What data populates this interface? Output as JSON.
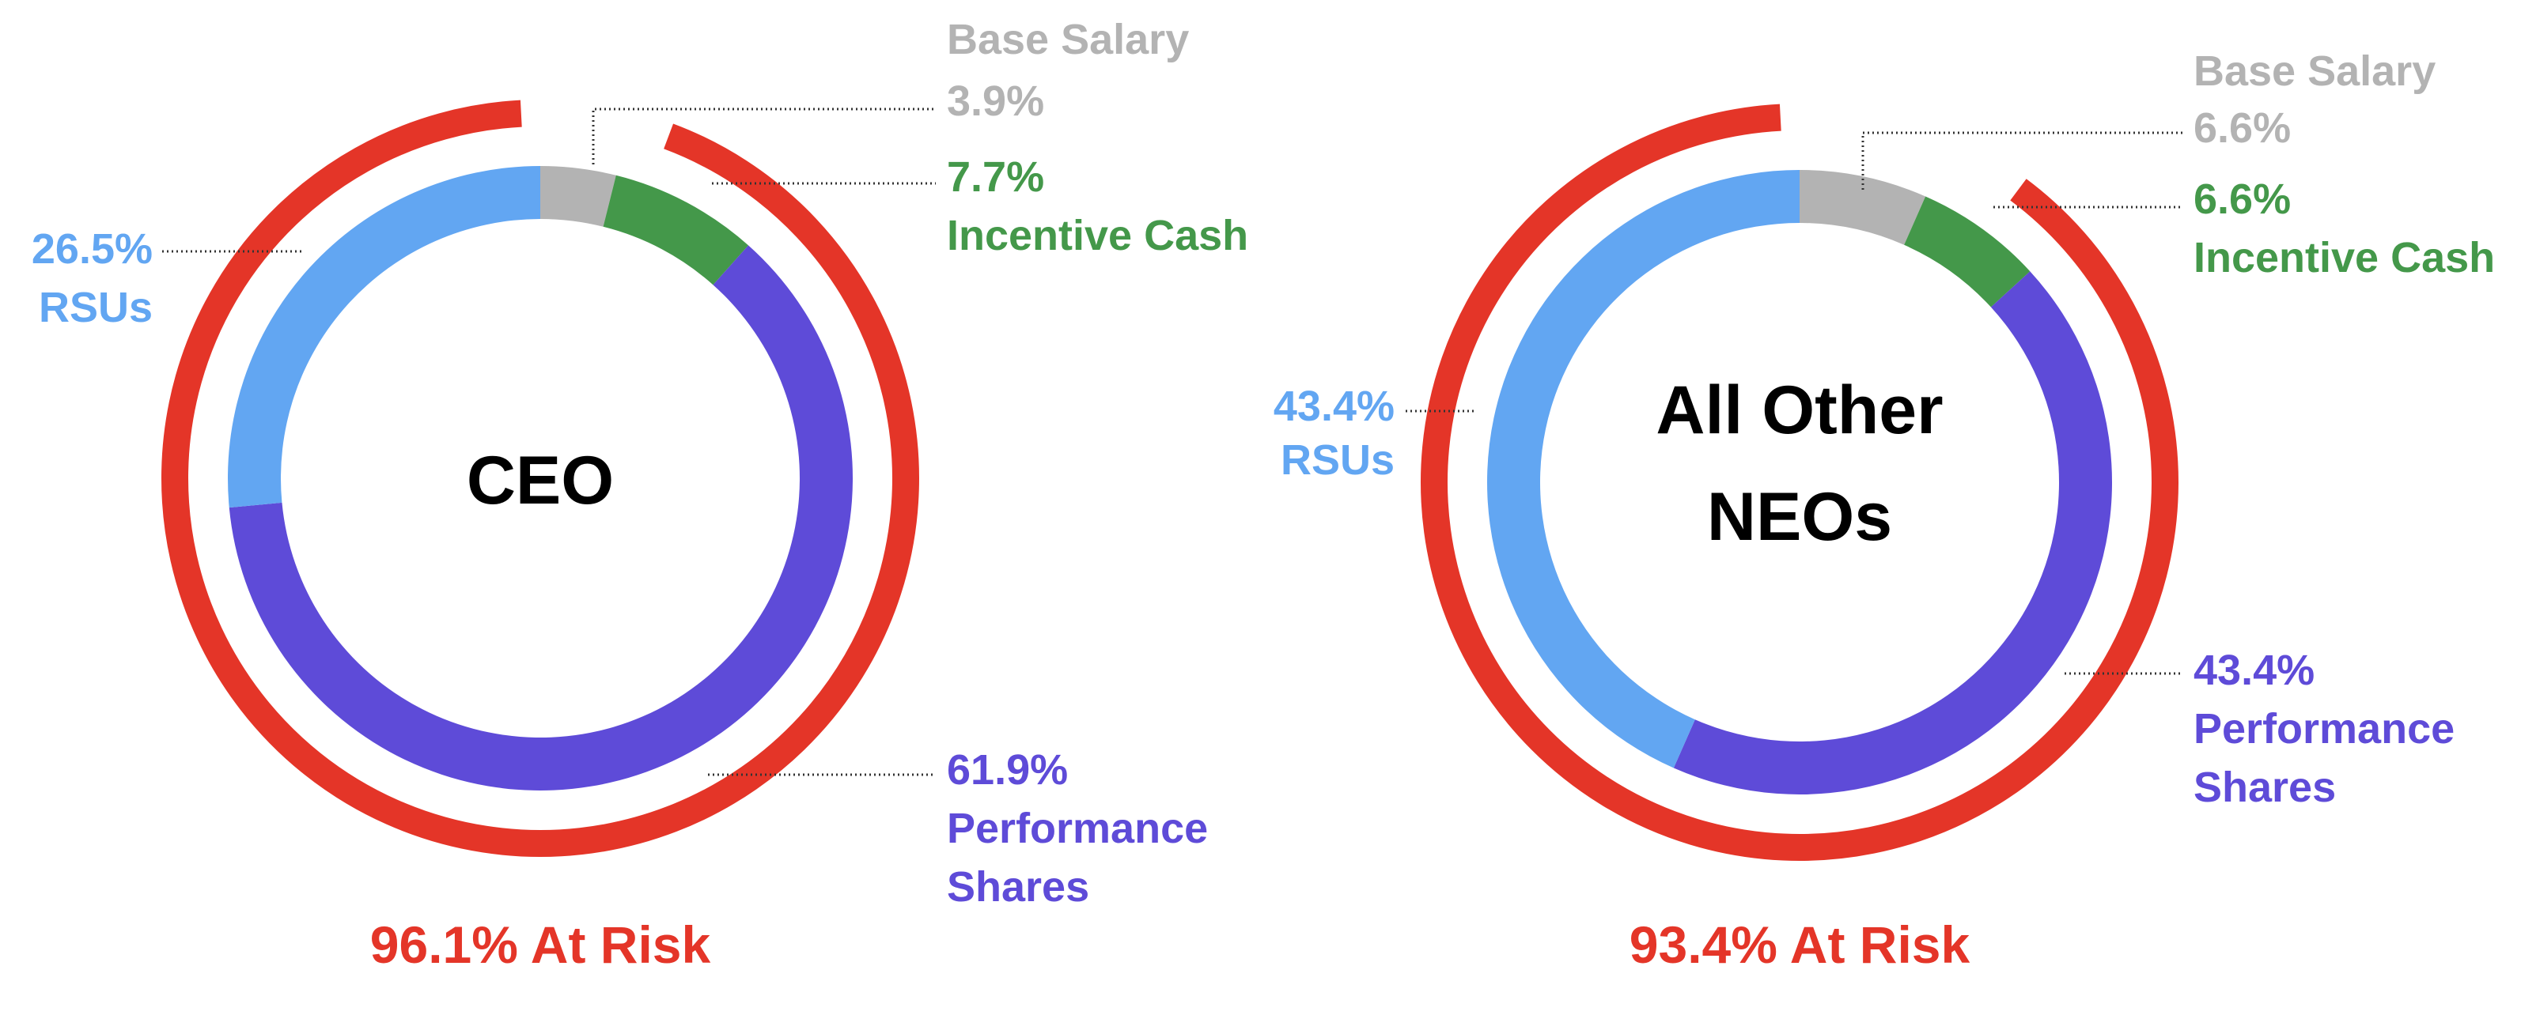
{
  "colors": {
    "base_salary": "#b3b3b3",
    "incentive_cash": "#44984a",
    "rsus": "#62a6f2",
    "performance_shares": "#5e4bd8",
    "at_risk": "#e43528",
    "center_text": "#000000",
    "leader": "#333333"
  },
  "chart_data": [
    {
      "type": "pie",
      "center_label": [
        "CEO"
      ],
      "segments": [
        {
          "name": "Base Salary",
          "pct_label": "3.9%",
          "value": 3.9,
          "color_key": "base_salary"
        },
        {
          "name": "Incentive Cash",
          "pct_label": "7.7%",
          "value": 7.7,
          "color_key": "incentive_cash"
        },
        {
          "name": "Performance Shares",
          "pct_label": "61.9%",
          "value": 61.9,
          "color_key": "performance_shares"
        },
        {
          "name": "RSUs",
          "pct_label": "26.5%",
          "value": 26.5,
          "color_key": "rsus"
        }
      ],
      "labels": {
        "base_salary": [
          "Base Salary",
          "3.9%"
        ],
        "incentive_cash": [
          "7.7%",
          "Incentive Cash"
        ],
        "performance_shares": [
          "61.9%",
          "Performance",
          "Shares"
        ],
        "rsus": [
          "26.5%",
          "RSUs"
        ]
      },
      "at_risk": {
        "value": 96.1,
        "label": "96.1% At Risk"
      }
    },
    {
      "type": "pie",
      "center_label": [
        "All Other",
        "NEOs"
      ],
      "segments": [
        {
          "name": "Base Salary",
          "pct_label": "6.6%",
          "value": 6.6,
          "color_key": "base_salary"
        },
        {
          "name": "Incentive Cash",
          "pct_label": "6.6%",
          "value": 6.6,
          "color_key": "incentive_cash"
        },
        {
          "name": "Performance Shares",
          "pct_label": "43.4%",
          "value": 43.4,
          "color_key": "performance_shares"
        },
        {
          "name": "RSUs",
          "pct_label": "43.4%",
          "value": 43.4,
          "color_key": "rsus"
        }
      ],
      "labels": {
        "base_salary": [
          "Base Salary",
          "6.6%"
        ],
        "incentive_cash": [
          "6.6%",
          "Incentive Cash"
        ],
        "performance_shares": [
          "43.4%",
          "Performance",
          "Shares"
        ],
        "rsus": [
          "43.4%",
          "RSUs"
        ]
      },
      "at_risk": {
        "value": 93.4,
        "label": "93.4% At Risk"
      }
    }
  ]
}
